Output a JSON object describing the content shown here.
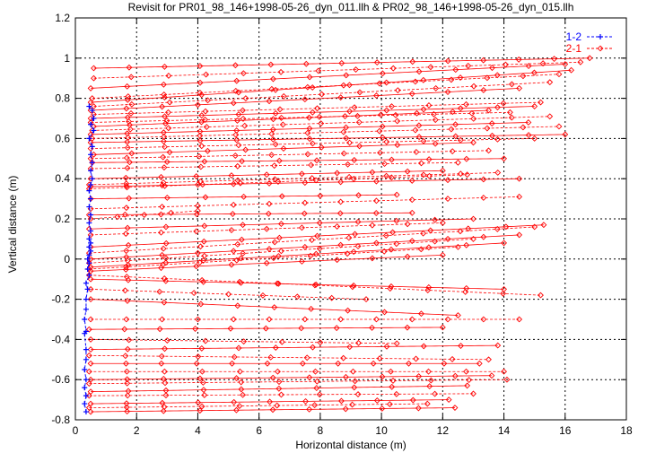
{
  "chart_data": {
    "type": "line",
    "title": "Revisit for PR01_98_146+1998-05-26_dyn_011.llh & PR02_98_146+1998-05-26_dyn_015.llh",
    "xlabel": "Horizontal distance (m)",
    "ylabel": "Vertical distance (m)",
    "xlim": [
      0,
      18
    ],
    "ylim": [
      -0.8,
      1.2
    ],
    "xticks": [
      0,
      2,
      4,
      6,
      8,
      10,
      12,
      14,
      16,
      18
    ],
    "yticks": [
      -0.8,
      -0.6,
      -0.4,
      -0.2,
      0,
      0.2,
      0.4,
      0.6,
      0.8,
      1,
      1.2
    ],
    "xtick_labels": [
      "0",
      "2",
      "4",
      "6",
      "8",
      "10",
      "12",
      "14",
      "16",
      "18"
    ],
    "ytick_labels": [
      "-0.8",
      "-0.6",
      "-0.4",
      "-0.2",
      "0",
      "0.2",
      "0.4",
      "0.6",
      "0.8",
      "1",
      "1.2"
    ],
    "grid": true,
    "legend_position": "top-right",
    "series": [
      {
        "name": "1-2",
        "color": "#0000ff",
        "marker": "plus",
        "points": [
          [
            0.45,
            0.76
          ],
          [
            0.55,
            0.74
          ],
          [
            0.6,
            0.7
          ],
          [
            0.5,
            0.67
          ],
          [
            0.6,
            0.64
          ],
          [
            0.45,
            0.6
          ],
          [
            0.55,
            0.56
          ],
          [
            0.5,
            0.52
          ],
          [
            0.55,
            0.48
          ],
          [
            0.5,
            0.44
          ],
          [
            0.55,
            0.4
          ],
          [
            0.5,
            0.37
          ],
          [
            0.45,
            0.34
          ],
          [
            0.5,
            0.3
          ],
          [
            0.45,
            0.26
          ],
          [
            0.5,
            0.22
          ],
          [
            0.45,
            0.18
          ],
          [
            0.5,
            0.14
          ],
          [
            0.45,
            0.1
          ],
          [
            0.5,
            0.08
          ],
          [
            0.45,
            0.06
          ],
          [
            0.5,
            0.04
          ],
          [
            0.45,
            0.02
          ],
          [
            0.4,
            0.0
          ],
          [
            0.45,
            -0.02
          ],
          [
            0.4,
            -0.05
          ],
          [
            0.45,
            -0.08
          ],
          [
            0.35,
            -0.12
          ],
          [
            0.4,
            -0.15
          ],
          [
            0.35,
            -0.2
          ],
          [
            0.35,
            -0.25
          ],
          [
            0.3,
            -0.3
          ],
          [
            0.35,
            -0.36
          ],
          [
            0.3,
            -0.37
          ],
          [
            0.35,
            -0.45
          ],
          [
            0.35,
            -0.5
          ],
          [
            0.3,
            -0.55
          ],
          [
            0.35,
            -0.6
          ],
          [
            0.3,
            -0.64
          ],
          [
            0.35,
            -0.68
          ],
          [
            0.3,
            -0.72
          ],
          [
            0.35,
            -0.76
          ]
        ]
      },
      {
        "name": "2-1",
        "color": "#ff0000",
        "marker": "diamond",
        "pairs": [
          [
            0.6,
            0.95,
            16.8,
            1.0
          ],
          [
            0.6,
            0.9,
            16.5,
            0.98
          ],
          [
            0.5,
            0.85,
            16.0,
            0.97
          ],
          [
            0.55,
            0.8,
            15.8,
            0.92
          ],
          [
            0.5,
            0.78,
            16.2,
            0.94
          ],
          [
            0.6,
            0.76,
            15.5,
            0.88
          ],
          [
            0.5,
            0.74,
            14.5,
            0.85
          ],
          [
            0.6,
            0.72,
            15.2,
            0.78
          ],
          [
            0.5,
            0.7,
            15.0,
            0.76
          ],
          [
            0.5,
            0.68,
            14.2,
            0.73
          ],
          [
            0.6,
            0.66,
            13.5,
            0.74
          ],
          [
            0.55,
            0.64,
            15.5,
            0.71
          ],
          [
            0.5,
            0.62,
            14.8,
            0.68
          ],
          [
            0.55,
            0.6,
            15.8,
            0.66
          ],
          [
            0.5,
            0.58,
            16.0,
            0.62
          ],
          [
            0.5,
            0.55,
            15.0,
            0.6
          ],
          [
            0.6,
            0.52,
            13.0,
            0.58
          ],
          [
            0.5,
            0.5,
            13.5,
            0.54
          ],
          [
            0.55,
            0.48,
            14.0,
            0.5
          ],
          [
            0.5,
            0.45,
            12.5,
            0.48
          ],
          [
            0.5,
            0.4,
            12.0,
            0.44
          ],
          [
            0.45,
            0.37,
            13.8,
            0.43
          ],
          [
            0.5,
            0.36,
            14.5,
            0.4
          ],
          [
            0.45,
            0.35,
            12.8,
            0.42
          ],
          [
            0.5,
            0.3,
            10.5,
            0.32
          ],
          [
            0.5,
            0.25,
            14.5,
            0.31
          ],
          [
            0.45,
            0.22,
            11.0,
            0.23
          ],
          [
            0.5,
            0.2,
            4.0,
            0.24
          ],
          [
            0.45,
            0.15,
            13.0,
            0.2
          ],
          [
            0.5,
            0.12,
            12.0,
            0.18
          ],
          [
            0.5,
            0.06,
            15.3,
            0.17
          ],
          [
            0.45,
            0.03,
            15.0,
            0.16
          ],
          [
            0.5,
            0.0,
            14.5,
            0.12
          ],
          [
            0.45,
            -0.02,
            13.0,
            0.1
          ],
          [
            0.5,
            -0.04,
            14.0,
            0.08
          ],
          [
            0.45,
            -0.05,
            12.5,
            0.06
          ],
          [
            0.5,
            -0.06,
            12.0,
            0.02
          ],
          [
            0.45,
            -0.08,
            15.2,
            -0.18
          ],
          [
            0.5,
            -0.1,
            14.0,
            -0.15
          ],
          [
            0.5,
            -0.15,
            9.5,
            -0.2
          ],
          [
            0.5,
            -0.2,
            12.5,
            -0.28
          ],
          [
            0.5,
            -0.3,
            14.5,
            -0.3
          ],
          [
            0.45,
            -0.35,
            12.0,
            -0.34
          ],
          [
            0.5,
            -0.4,
            10.5,
            -0.42
          ],
          [
            0.5,
            -0.45,
            13.8,
            -0.43
          ],
          [
            0.45,
            -0.48,
            13.5,
            -0.5
          ],
          [
            0.5,
            -0.52,
            13.2,
            -0.52
          ],
          [
            0.45,
            -0.56,
            14.0,
            -0.56
          ],
          [
            0.5,
            -0.6,
            13.6,
            -0.58
          ],
          [
            0.45,
            -0.62,
            14.1,
            -0.6
          ],
          [
            0.5,
            -0.66,
            12.8,
            -0.63
          ],
          [
            0.45,
            -0.68,
            13.0,
            -0.67
          ],
          [
            0.5,
            -0.72,
            12.2,
            -0.7
          ],
          [
            0.45,
            -0.74,
            11.5,
            -0.72
          ],
          [
            0.5,
            -0.76,
            12.4,
            -0.74
          ]
        ]
      }
    ]
  }
}
